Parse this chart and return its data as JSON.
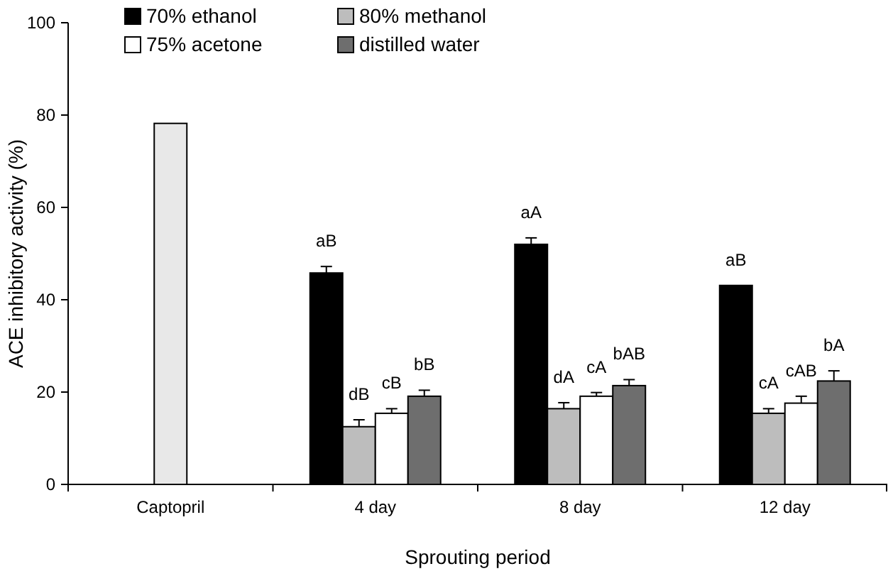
{
  "chart_data": {
    "type": "bar",
    "xlabel": "Sprouting period",
    "ylabel": "ACE inhibitory activity (%)",
    "categories": [
      "Captopril",
      "4 day",
      "8 day",
      "12 day"
    ],
    "series": [
      {
        "color": "#e8e8e8",
        "values": [
          78.2,
          null,
          null,
          null
        ]
      },
      {
        "name": "70% ethanol",
        "color": "#000000",
        "values": [
          null,
          45.8,
          52.0,
          43.1
        ],
        "errors": [
          null,
          1.4,
          1.4,
          null
        ],
        "value_labels": [
          null,
          "aB",
          "aA",
          "aB"
        ]
      },
      {
        "name": "80% methanol",
        "color": "#bdbdbd",
        "values": [
          null,
          12.5,
          16.4,
          15.4
        ],
        "errors": [
          null,
          1.5,
          1.3,
          1.0
        ],
        "value_labels": [
          null,
          "dB",
          "dA",
          "cA"
        ]
      },
      {
        "name": "75% acetone",
        "color": "#ffffff",
        "values": [
          null,
          15.4,
          19.1,
          17.6
        ],
        "errors": [
          null,
          1.0,
          0.8,
          1.5
        ],
        "value_labels": [
          null,
          "cB",
          "cA",
          "cAB"
        ]
      },
      {
        "name": "distilled water",
        "color": "#6e6e6e",
        "values": [
          null,
          19.1,
          21.4,
          22.4
        ],
        "errors": [
          null,
          1.3,
          1.3,
          2.2
        ],
        "value_labels": [
          null,
          "bB",
          "bAB",
          "bA"
        ]
      }
    ],
    "ylim": [
      0,
      100
    ],
    "yticks": [
      0,
      20,
      40,
      60,
      80,
      100
    ],
    "grid": false,
    "legend": "top left"
  }
}
